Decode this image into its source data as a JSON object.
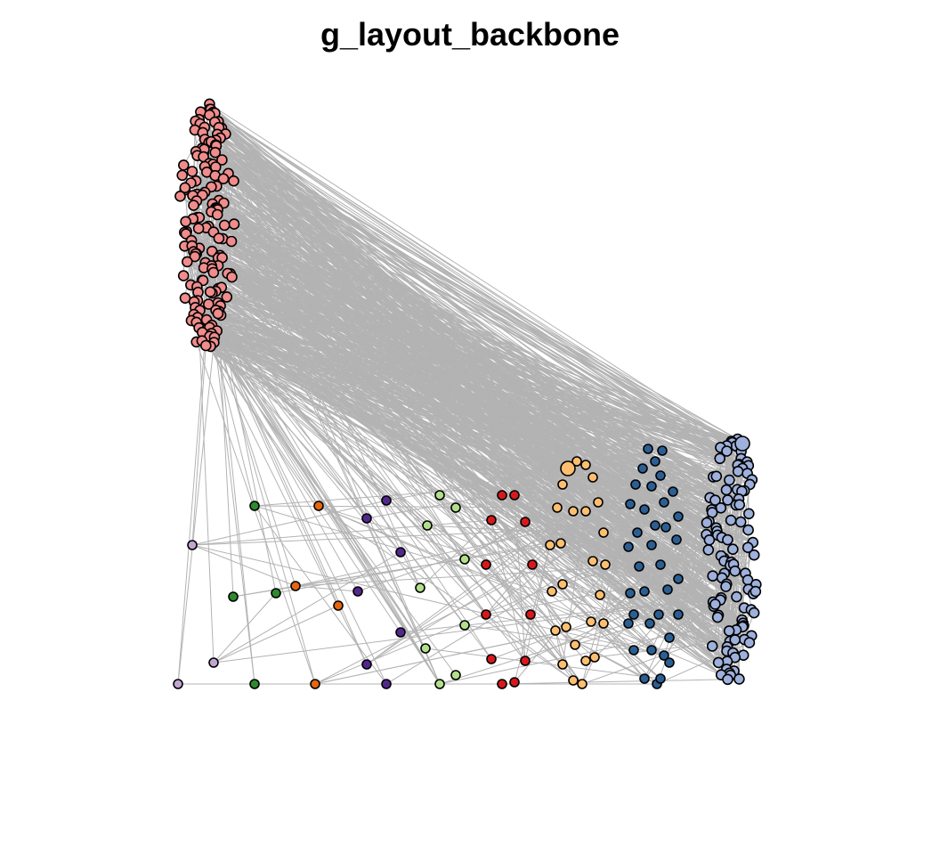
{
  "plot": {
    "title": "g_layout_backbone"
  },
  "palette": {
    "edge": "#b3b3b3",
    "node_stroke": "#000000",
    "pink": "#f08c8c",
    "periwinkle": "#9eb0dc",
    "navy": "#2b5f93",
    "light_orange": "#fdbf6f",
    "red": "#d7191c",
    "light_green": "#b2df8a",
    "purple": "#54278f",
    "dark_orange": "#e6650f",
    "dark_green": "#2d8a2d",
    "lilac": "#c2a5cf"
  },
  "graph": {
    "layout": "backbone",
    "groups": [
      {
        "id": "g1",
        "color_key": "pink"
      },
      {
        "id": "g2",
        "color_key": "periwinkle"
      },
      {
        "id": "g3",
        "color_key": "navy"
      },
      {
        "id": "g4",
        "color_key": "light_orange"
      },
      {
        "id": "g5",
        "color_key": "red"
      },
      {
        "id": "g6",
        "color_key": "light_green"
      },
      {
        "id": "g7",
        "color_key": "purple"
      },
      {
        "id": "g8",
        "color_key": "dark_orange"
      },
      {
        "id": "g9",
        "color_key": "dark_green"
      },
      {
        "id": "g10",
        "color_key": "lilac"
      }
    ]
  }
}
